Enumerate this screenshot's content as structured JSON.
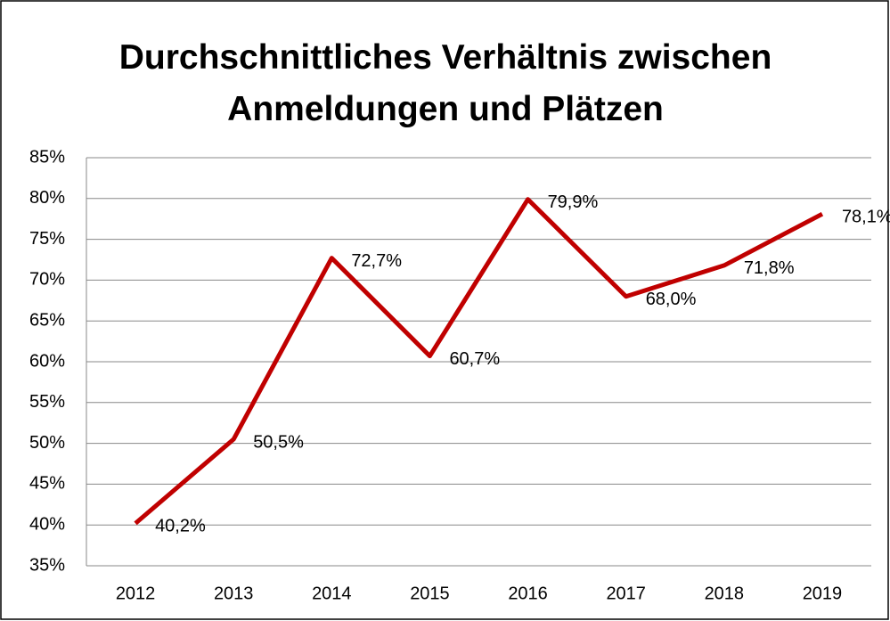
{
  "chart_data": {
    "type": "line",
    "title": "Durchschnittliches Verhältnis zwischen Anmeldungen und Plätzen",
    "categories": [
      "2012",
      "2013",
      "2014",
      "2015",
      "2016",
      "2017",
      "2018",
      "2019"
    ],
    "series": [
      {
        "color": "#c00000",
        "values": [
          40.2,
          50.5,
          72.7,
          60.7,
          79.9,
          68.0,
          71.8,
          78.1
        ],
        "value_labels": [
          "40,2%",
          "50,5%",
          "72,7%",
          "60,7%",
          "79,9%",
          "68,0%",
          "71,8%",
          "78,1%"
        ]
      }
    ],
    "ylim": [
      35,
      85
    ],
    "yticks": [
      {
        "value": 35,
        "label": "35%"
      },
      {
        "value": 40,
        "label": "40%"
      },
      {
        "value": 45,
        "label": "45%"
      },
      {
        "value": 50,
        "label": "50%"
      },
      {
        "value": 55,
        "label": "55%"
      },
      {
        "value": 60,
        "label": "60%"
      },
      {
        "value": 65,
        "label": "65%"
      },
      {
        "value": 70,
        "label": "70%"
      },
      {
        "value": 75,
        "label": "75%"
      },
      {
        "value": 80,
        "label": "80%"
      },
      {
        "value": 85,
        "label": "85%"
      }
    ],
    "grid": true
  }
}
